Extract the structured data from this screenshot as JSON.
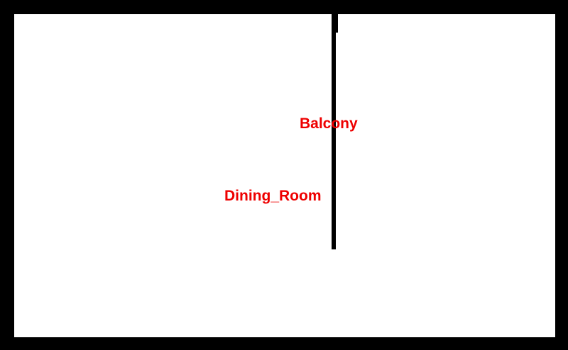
{
  "colors": {
    "background": "#000000",
    "floor": "#ffffff",
    "wall": "#000000",
    "label": "#ee0000"
  },
  "rooms": [
    {
      "label": "Balcony"
    },
    {
      "label": "Dining_Room"
    }
  ]
}
